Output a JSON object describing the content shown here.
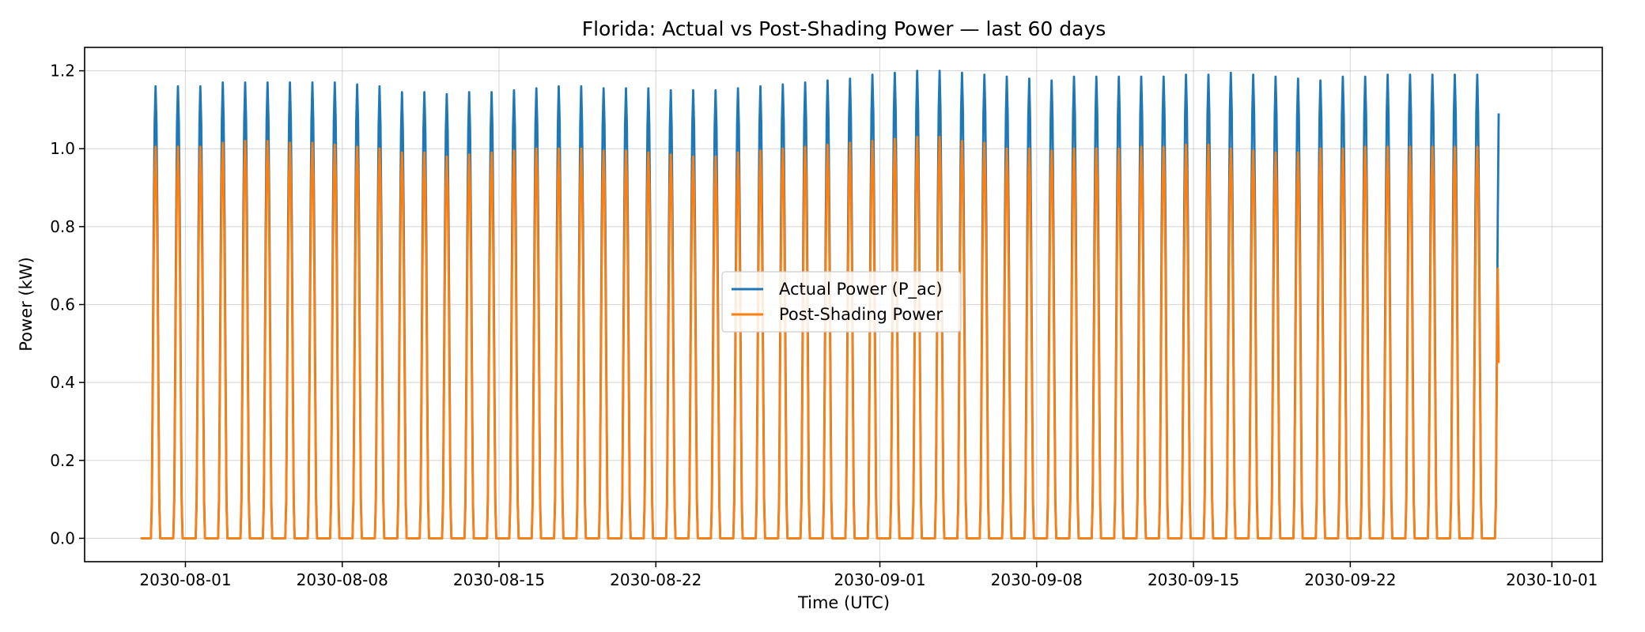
{
  "chart_data": {
    "type": "line",
    "title": "Florida: Actual vs Post-Shading Power — last 60 days",
    "xlabel": "Time (UTC)",
    "ylabel": "Power (kW)",
    "x_scale": "date",
    "xlim": [
      "2030-07-27T12:00",
      "2030-10-03T06:00"
    ],
    "ylim": [
      -0.06,
      1.26
    ],
    "x_ticks": [
      "2030-08-01",
      "2030-08-08",
      "2030-08-15",
      "2030-08-22",
      "2030-09-01",
      "2030-09-08",
      "2030-09-15",
      "2030-09-22",
      "2030-10-01"
    ],
    "y_ticks": [
      "0.0",
      "0.2",
      "0.4",
      "0.6",
      "0.8",
      "1.0",
      "1.2"
    ],
    "grid": true,
    "legend_position": "center",
    "data_start": "2030-07-30T00:00",
    "data_end": "2030-09-28T15:00",
    "daily_shape": "diurnal, zero at night, peak near 16:00 UTC",
    "series": [
      {
        "name": "Actual Power (P_ac)",
        "color": "#1f77b4",
        "daily_peaks_kw": [
          1.16,
          1.16,
          1.16,
          1.17,
          1.17,
          1.17,
          1.17,
          1.17,
          1.17,
          1.165,
          1.16,
          1.145,
          1.145,
          1.14,
          1.145,
          1.145,
          1.15,
          1.155,
          1.16,
          1.16,
          1.155,
          1.155,
          1.155,
          1.15,
          1.15,
          1.15,
          1.155,
          1.16,
          1.165,
          1.17,
          1.175,
          1.18,
          1.19,
          1.195,
          1.2,
          1.2,
          1.195,
          1.19,
          1.185,
          1.18,
          1.175,
          1.185,
          1.185,
          1.185,
          1.185,
          1.185,
          1.19,
          1.19,
          1.195,
          1.19,
          1.185,
          1.18,
          1.175,
          1.185,
          1.185,
          1.19,
          1.19,
          1.19,
          1.19,
          1.19,
          1.19
        ]
      },
      {
        "name": "Post-Shading Power",
        "color": "#ff7f0e",
        "daily_peaks_kw": [
          1.005,
          1.005,
          1.005,
          1.015,
          1.02,
          1.02,
          1.015,
          1.015,
          1.01,
          1.005,
          1.0,
          0.99,
          0.99,
          0.98,
          0.985,
          0.99,
          0.995,
          1.0,
          1.0,
          1.0,
          0.995,
          0.995,
          0.99,
          0.985,
          0.98,
          0.98,
          0.99,
          0.995,
          1.0,
          1.005,
          1.01,
          1.015,
          1.02,
          1.025,
          1.03,
          1.03,
          1.02,
          1.015,
          1.0,
          1.0,
          0.995,
          1.0,
          1.0,
          1.0,
          1.005,
          1.005,
          1.01,
          1.01,
          1.0,
          0.995,
          0.99,
          0.99,
          1.0,
          1.0,
          1.005,
          1.005,
          1.005,
          1.005,
          1.005,
          1.005,
          1.005
        ],
        "last_value_kw": 0.45
      }
    ]
  }
}
